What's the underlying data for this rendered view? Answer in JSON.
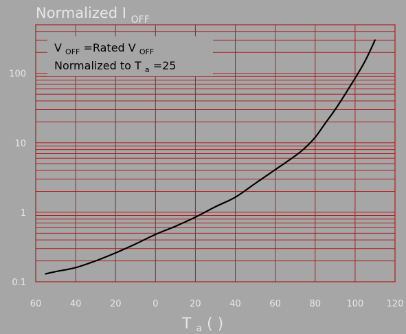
{
  "chart_data": {
    "type": "line",
    "title": {
      "main": "Normalized I",
      "sub": "OFF"
    },
    "xlabel": {
      "main": "T",
      "sub": "a",
      "unit": "(    )"
    },
    "ylabel": "",
    "xlim": [
      -60,
      120
    ],
    "ylim": [
      0.1,
      500
    ],
    "yscale": "log",
    "grid": true,
    "colors": {
      "background": "#a6a6a6",
      "grid": "#b01c1c",
      "line": "#000000",
      "text": "#e8e8e8"
    },
    "x_tick_values": [
      -60,
      -40,
      -20,
      0,
      20,
      40,
      60,
      80,
      100,
      120
    ],
    "x_tick_labels": [
      "60",
      "40",
      "20",
      "0",
      "20",
      "40",
      "60",
      "80",
      "100",
      "120"
    ],
    "y_tick_values": [
      0.1,
      1,
      10,
      100
    ],
    "y_tick_labels": [
      "0.1",
      "1",
      "10",
      "100"
    ],
    "annotations": {
      "line1": {
        "main_a": "V",
        "sub_a": "OFF",
        "main_b": "=Rated V",
        "sub_b": "OFF"
      },
      "line2": {
        "main": "Normalized to T",
        "sub": "a",
        "tail": "=25"
      }
    },
    "series": [
      {
        "x": [
          -55,
          -50,
          -40,
          -30,
          -20,
          -10,
          0,
          10,
          20,
          30,
          40,
          50,
          60,
          70,
          75,
          80,
          85,
          90,
          95,
          100,
          105,
          110
        ],
        "y": [
          0.13,
          0.14,
          0.16,
          0.2,
          0.26,
          0.35,
          0.48,
          0.63,
          0.85,
          1.2,
          1.65,
          2.6,
          4.1,
          6.5,
          8.5,
          12,
          19,
          30,
          50,
          85,
          150,
          300
        ]
      }
    ]
  }
}
